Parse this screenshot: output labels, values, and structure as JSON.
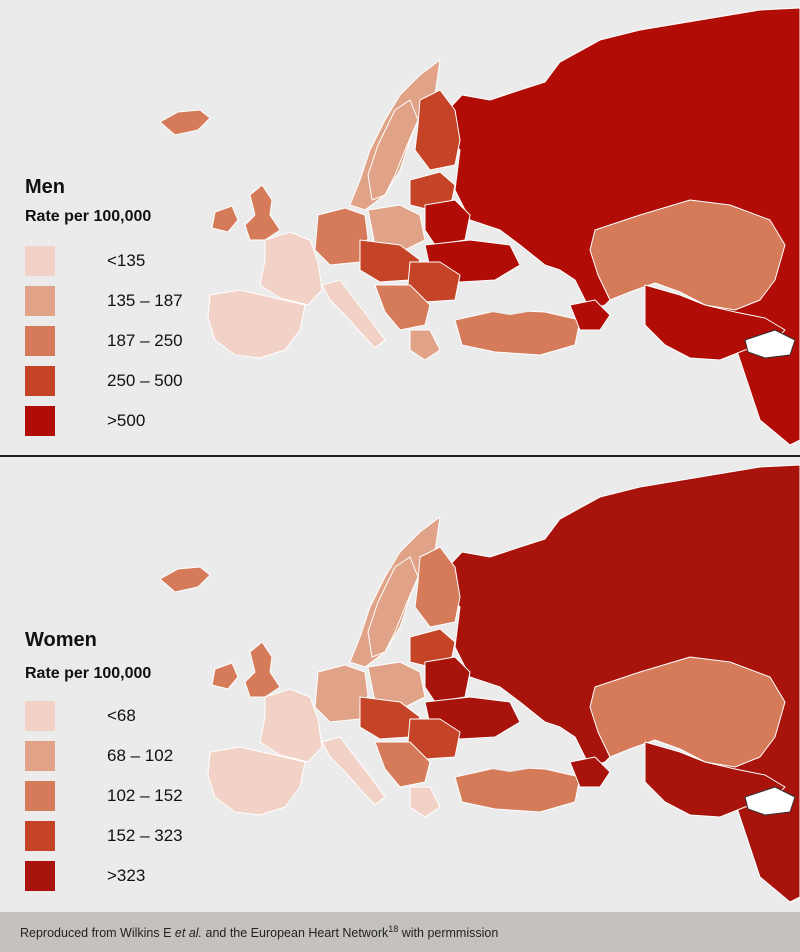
{
  "panels": [
    {
      "title": "Men",
      "subtitle": "Rate per 100,000",
      "legend": [
        {
          "label": "<135",
          "color": "#f2d2c6"
        },
        {
          "label": "135 – 187",
          "color": "#e0a387"
        },
        {
          "label": "187 – 250",
          "color": "#d57b5a"
        },
        {
          "label": "250 – 500",
          "color": "#c54428"
        },
        {
          "label": ">500",
          "color": "#b10c05"
        }
      ]
    },
    {
      "title": "Women",
      "subtitle": "Rate per 100,000",
      "legend": [
        {
          "label": "<68",
          "color": "#f2d2c6"
        },
        {
          "label": "68 – 102",
          "color": "#e0a387"
        },
        {
          "label": "102 – 152",
          "color": "#d57b5a"
        },
        {
          "label": "152 – 323",
          "color": "#c54428"
        },
        {
          "label": ">323",
          "color": "#a8140b"
        }
      ]
    }
  ],
  "footer": {
    "text_before": "Reproduced from Wilkins E ",
    "italic": "et al.",
    "text_mid": " and the European Heart Network",
    "superscript": "18",
    "text_after": " with permmission"
  }
}
